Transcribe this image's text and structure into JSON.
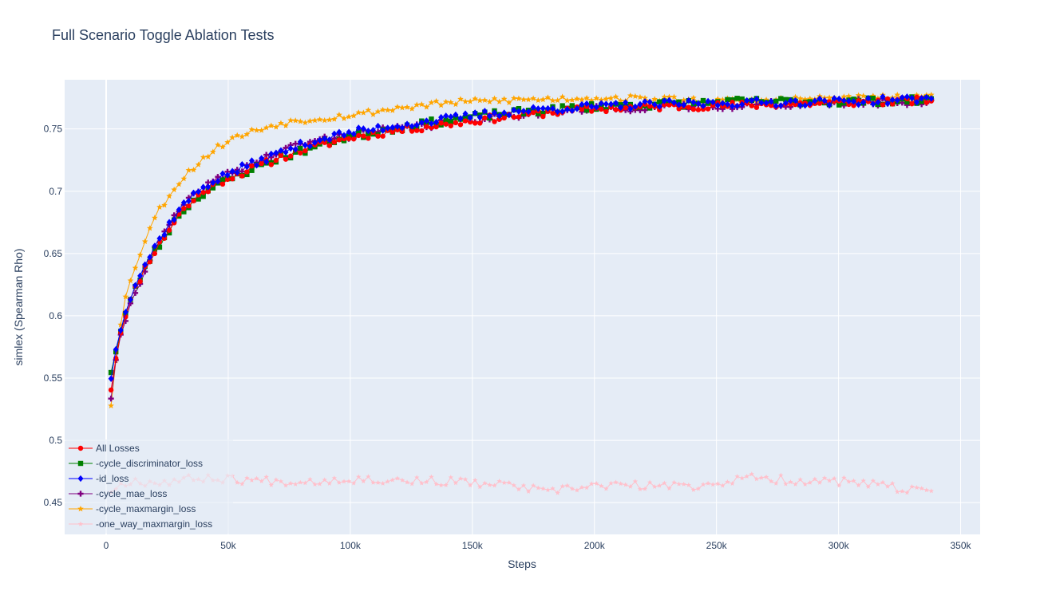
{
  "chart_data": {
    "type": "line",
    "title": "Full Scenario Toggle Ablation Tests",
    "xlabel": "Steps",
    "ylabel": "simlex (Spearman Rho)",
    "xlim": [
      -17000,
      358000
    ],
    "ylim": [
      0.4245,
      0.7895
    ],
    "x_ticks": [
      0,
      50000,
      100000,
      150000,
      200000,
      250000,
      300000,
      350000
    ],
    "x_tick_labels": [
      "0",
      "50k",
      "100k",
      "150k",
      "200k",
      "250k",
      "300k",
      "350k"
    ],
    "y_ticks": [
      0.45,
      0.5,
      0.55,
      0.6,
      0.65,
      0.7,
      0.75
    ],
    "y_tick_labels": [
      "0.45",
      "0.5",
      "0.55",
      "0.6",
      "0.65",
      "0.7",
      "0.75"
    ],
    "grid": true,
    "legend_position": "bottom-left",
    "x_range": [
      2000,
      338000
    ],
    "series": [
      {
        "name": "All Losses",
        "color": "#ff0000",
        "marker": "circle",
        "anchors": [
          [
            2000,
            0.542
          ],
          [
            5000,
            0.58
          ],
          [
            8000,
            0.602
          ],
          [
            12000,
            0.622
          ],
          [
            17000,
            0.643
          ],
          [
            22000,
            0.658
          ],
          [
            30000,
            0.682
          ],
          [
            40000,
            0.7
          ],
          [
            50000,
            0.711
          ],
          [
            60000,
            0.718
          ],
          [
            70000,
            0.726
          ],
          [
            80000,
            0.733
          ],
          [
            90000,
            0.738
          ],
          [
            100000,
            0.743
          ],
          [
            120000,
            0.749
          ],
          [
            140000,
            0.754
          ],
          [
            160000,
            0.759
          ],
          [
            180000,
            0.763
          ],
          [
            200000,
            0.766
          ],
          [
            230000,
            0.768
          ],
          [
            260000,
            0.769
          ],
          [
            300000,
            0.771
          ],
          [
            338000,
            0.773
          ]
        ],
        "noise": 0.003,
        "seed": 11
      },
      {
        "name": "-cycle_discriminator_loss",
        "color": "#008000",
        "marker": "square",
        "anchors": [
          [
            2000,
            0.556
          ],
          [
            5000,
            0.58
          ],
          [
            8000,
            0.602
          ],
          [
            12000,
            0.622
          ],
          [
            17000,
            0.643
          ],
          [
            22000,
            0.657
          ],
          [
            30000,
            0.682
          ],
          [
            40000,
            0.699
          ],
          [
            50000,
            0.709
          ],
          [
            60000,
            0.718
          ],
          [
            70000,
            0.726
          ],
          [
            80000,
            0.732
          ],
          [
            90000,
            0.739
          ],
          [
            100000,
            0.744
          ],
          [
            120000,
            0.751
          ],
          [
            140000,
            0.757
          ],
          [
            160000,
            0.762
          ],
          [
            180000,
            0.765
          ],
          [
            200000,
            0.768
          ],
          [
            230000,
            0.77
          ],
          [
            260000,
            0.772
          ],
          [
            300000,
            0.772
          ],
          [
            338000,
            0.773
          ]
        ],
        "noise": 0.003,
        "seed": 23
      },
      {
        "name": "-id_loss",
        "color": "#0000ff",
        "marker": "diamond",
        "anchors": [
          [
            2000,
            0.551
          ],
          [
            5000,
            0.583
          ],
          [
            8000,
            0.606
          ],
          [
            12000,
            0.626
          ],
          [
            17000,
            0.645
          ],
          [
            22000,
            0.662
          ],
          [
            30000,
            0.686
          ],
          [
            40000,
            0.704
          ],
          [
            50000,
            0.714
          ],
          [
            60000,
            0.722
          ],
          [
            70000,
            0.73
          ],
          [
            80000,
            0.737
          ],
          [
            90000,
            0.743
          ],
          [
            100000,
            0.747
          ],
          [
            120000,
            0.753
          ],
          [
            140000,
            0.758
          ],
          [
            160000,
            0.763
          ],
          [
            180000,
            0.766
          ],
          [
            200000,
            0.768
          ],
          [
            230000,
            0.77
          ],
          [
            260000,
            0.771
          ],
          [
            300000,
            0.772
          ],
          [
            338000,
            0.774
          ]
        ],
        "noise": 0.003,
        "seed": 37
      },
      {
        "name": "-cycle_mae_loss",
        "color": "#800080",
        "marker": "cross",
        "anchors": [
          [
            2000,
            0.535
          ],
          [
            5000,
            0.575
          ],
          [
            8000,
            0.598
          ],
          [
            12000,
            0.62
          ],
          [
            17000,
            0.642
          ],
          [
            22000,
            0.66
          ],
          [
            30000,
            0.685
          ],
          [
            40000,
            0.703
          ],
          [
            50000,
            0.714
          ],
          [
            60000,
            0.722
          ],
          [
            70000,
            0.731
          ],
          [
            80000,
            0.738
          ],
          [
            90000,
            0.742
          ],
          [
            100000,
            0.745
          ],
          [
            120000,
            0.75
          ],
          [
            140000,
            0.755
          ],
          [
            160000,
            0.76
          ],
          [
            180000,
            0.764
          ],
          [
            200000,
            0.766
          ],
          [
            230000,
            0.768
          ],
          [
            260000,
            0.769
          ],
          [
            300000,
            0.771
          ],
          [
            338000,
            0.772
          ]
        ],
        "noise": 0.003,
        "seed": 41
      },
      {
        "name": "-cycle_maxmargin_loss",
        "color": "#ffa500",
        "marker": "star",
        "anchors": [
          [
            2000,
            0.529
          ],
          [
            5000,
            0.585
          ],
          [
            8000,
            0.615
          ],
          [
            12000,
            0.64
          ],
          [
            17000,
            0.667
          ],
          [
            22000,
            0.686
          ],
          [
            30000,
            0.708
          ],
          [
            40000,
            0.727
          ],
          [
            50000,
            0.741
          ],
          [
            60000,
            0.748
          ],
          [
            70000,
            0.754
          ],
          [
            80000,
            0.757
          ],
          [
            90000,
            0.759
          ],
          [
            100000,
            0.761
          ],
          [
            120000,
            0.767
          ],
          [
            140000,
            0.771
          ],
          [
            160000,
            0.773
          ],
          [
            180000,
            0.774
          ],
          [
            200000,
            0.775
          ],
          [
            230000,
            0.774
          ],
          [
            260000,
            0.772
          ],
          [
            300000,
            0.775
          ],
          [
            338000,
            0.775
          ]
        ],
        "noise": 0.0025,
        "seed": 53
      },
      {
        "name": "-one_way_maxmargin_loss",
        "color": "#ffc0cb",
        "marker": "star-triangle",
        "anchors": [
          [
            2000,
            0.46
          ],
          [
            10000,
            0.468
          ],
          [
            20000,
            0.466
          ],
          [
            40000,
            0.47
          ],
          [
            60000,
            0.468
          ],
          [
            80000,
            0.467
          ],
          [
            100000,
            0.469
          ],
          [
            140000,
            0.467
          ],
          [
            170000,
            0.463
          ],
          [
            180000,
            0.458
          ],
          [
            200000,
            0.464
          ],
          [
            240000,
            0.463
          ],
          [
            265000,
            0.47
          ],
          [
            280000,
            0.468
          ],
          [
            300000,
            0.467
          ],
          [
            320000,
            0.463
          ],
          [
            338000,
            0.457
          ]
        ],
        "noise": 0.0035,
        "seed": 67
      }
    ]
  }
}
